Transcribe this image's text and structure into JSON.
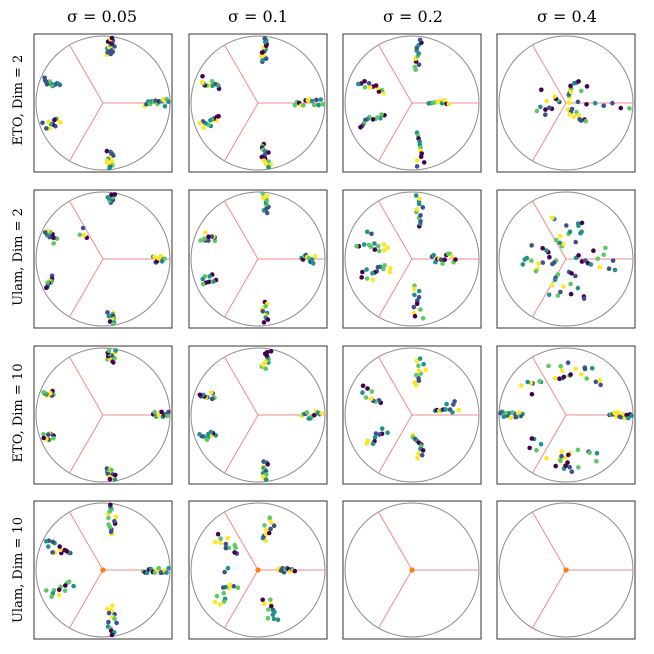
{
  "figure": {
    "column_titles": [
      "σ = 0.05",
      "σ = 0.1",
      "σ = 0.2",
      "σ = 0.4"
    ],
    "row_labels": [
      "ETO, Dim = 2",
      "Ulam, Dim = 2",
      "ETO, Dim = 10",
      "Ulam, Dim = 10"
    ]
  },
  "colors": {
    "frame": "#333333",
    "unit_circle": "#8c8c8c",
    "spokes": "#f28b8b",
    "center_marker": "#ff7f0e",
    "colormap": [
      "#440154",
      "#3b528b",
      "#21918c",
      "#5ec962",
      "#fde725"
    ]
  },
  "chart_data": {
    "type": "scatter",
    "description_free": true,
    "xlim": [
      -1.05,
      1.05
    ],
    "ylim": [
      -1.05,
      1.05
    ],
    "axes_visible": false,
    "grid": false,
    "spoke_angles_deg": [
      0,
      120,
      240
    ],
    "panels": [
      {
        "row": 0,
        "col": 0,
        "clusters": [
          {
            "angle": 0,
            "r0": 0.62,
            "r1": 0.98,
            "spread": 4,
            "n": 14
          },
          {
            "angle": 82,
            "r0": 0.72,
            "r1": 0.98,
            "spread": 4,
            "n": 14
          },
          {
            "angle": 158,
            "r0": 0.7,
            "r1": 0.95,
            "spread": 4,
            "n": 12
          },
          {
            "angle": 202,
            "r0": 0.7,
            "r1": 0.95,
            "spread": 4,
            "n": 12
          },
          {
            "angle": 278,
            "r0": 0.72,
            "r1": 0.98,
            "spread": 4,
            "n": 14
          }
        ],
        "center": false
      },
      {
        "row": 0,
        "col": 1,
        "clusters": [
          {
            "angle": 0,
            "r0": 0.55,
            "r1": 0.97,
            "spread": 4,
            "n": 14
          },
          {
            "angle": 82,
            "r0": 0.62,
            "r1": 0.97,
            "spread": 4,
            "n": 14
          },
          {
            "angle": 158,
            "r0": 0.62,
            "r1": 0.92,
            "spread": 4,
            "n": 12
          },
          {
            "angle": 202,
            "r0": 0.62,
            "r1": 0.92,
            "spread": 4,
            "n": 12
          },
          {
            "angle": 278,
            "r0": 0.62,
            "r1": 0.97,
            "spread": 4,
            "n": 14
          }
        ],
        "center": false
      },
      {
        "row": 0,
        "col": 2,
        "clusters": [
          {
            "angle": 0,
            "r0": 0.25,
            "r1": 0.55,
            "spread": 5,
            "n": 10
          },
          {
            "angle": 82,
            "r0": 0.5,
            "r1": 0.95,
            "spread": 4,
            "n": 12
          },
          {
            "angle": 158,
            "r0": 0.45,
            "r1": 0.85,
            "spread": 4,
            "n": 12
          },
          {
            "angle": 202,
            "r0": 0.45,
            "r1": 0.85,
            "spread": 4,
            "n": 12
          },
          {
            "angle": 278,
            "r0": 0.45,
            "r1": 0.95,
            "spread": 4,
            "n": 12
          }
        ],
        "center": false
      },
      {
        "row": 0,
        "col": 3,
        "clusters": [
          {
            "angle": 0,
            "r0": 0.05,
            "r1": 0.95,
            "spread": 6,
            "n": 8
          },
          {
            "angle": 60,
            "r0": 0.1,
            "r1": 0.4,
            "spread": 25,
            "n": 12
          },
          {
            "angle": 180,
            "r0": 0.1,
            "r1": 0.45,
            "spread": 30,
            "n": 12
          },
          {
            "angle": 300,
            "r0": 0.1,
            "r1": 0.4,
            "spread": 25,
            "n": 12
          }
        ],
        "center": false
      },
      {
        "row": 1,
        "col": 0,
        "clusters": [
          {
            "angle": 0,
            "r0": 0.75,
            "r1": 0.92,
            "spread": 4,
            "n": 10
          },
          {
            "angle": 82,
            "r0": 0.85,
            "r1": 0.98,
            "spread": 4,
            "n": 10
          },
          {
            "angle": 158,
            "r0": 0.75,
            "r1": 0.95,
            "spread": 6,
            "n": 10
          },
          {
            "angle": 202,
            "r0": 0.8,
            "r1": 0.95,
            "spread": 5,
            "n": 10
          },
          {
            "angle": 278,
            "r0": 0.8,
            "r1": 0.98,
            "spread": 4,
            "n": 10
          },
          {
            "angle": 120,
            "r0": 0.4,
            "r1": 0.55,
            "spread": 20,
            "n": 4
          }
        ],
        "center": false
      },
      {
        "row": 1,
        "col": 1,
        "clusters": [
          {
            "angle": 0,
            "r0": 0.65,
            "r1": 0.85,
            "spread": 5,
            "n": 10
          },
          {
            "angle": 82,
            "r0": 0.7,
            "r1": 0.98,
            "spread": 4,
            "n": 10
          },
          {
            "angle": 158,
            "r0": 0.7,
            "r1": 0.9,
            "spread": 5,
            "n": 10
          },
          {
            "angle": 202,
            "r0": 0.7,
            "r1": 0.9,
            "spread": 5,
            "n": 10
          },
          {
            "angle": 278,
            "r0": 0.65,
            "r1": 0.95,
            "spread": 4,
            "n": 10
          }
        ],
        "center": false
      },
      {
        "row": 1,
        "col": 2,
        "clusters": [
          {
            "angle": 0,
            "r0": 0.3,
            "r1": 0.65,
            "spread": 10,
            "n": 14
          },
          {
            "angle": 82,
            "r0": 0.5,
            "r1": 0.95,
            "spread": 6,
            "n": 12
          },
          {
            "angle": 158,
            "r0": 0.4,
            "r1": 0.85,
            "spread": 10,
            "n": 14
          },
          {
            "angle": 202,
            "r0": 0.35,
            "r1": 0.8,
            "spread": 10,
            "n": 14
          },
          {
            "angle": 278,
            "r0": 0.4,
            "r1": 0.9,
            "spread": 6,
            "n": 12
          }
        ],
        "center": false
      },
      {
        "row": 1,
        "col": 3,
        "clusters": [
          {
            "angle": 0,
            "r0": 0.15,
            "r1": 0.75,
            "spread": 18,
            "n": 14
          },
          {
            "angle": 90,
            "r0": 0.2,
            "r1": 0.65,
            "spread": 30,
            "n": 16
          },
          {
            "angle": 180,
            "r0": 0.15,
            "r1": 0.65,
            "spread": 25,
            "n": 16
          },
          {
            "angle": 270,
            "r0": 0.2,
            "r1": 0.65,
            "spread": 30,
            "n": 16
          }
        ],
        "center": false
      },
      {
        "row": 2,
        "col": 0,
        "clusters": [
          {
            "angle": 0,
            "r0": 0.75,
            "r1": 0.98,
            "spread": 4,
            "n": 12
          },
          {
            "angle": 82,
            "r0": 0.8,
            "r1": 0.98,
            "spread": 4,
            "n": 12
          },
          {
            "angle": 158,
            "r0": 0.8,
            "r1": 0.95,
            "spread": 4,
            "n": 10
          },
          {
            "angle": 202,
            "r0": 0.8,
            "r1": 0.95,
            "spread": 4,
            "n": 10
          },
          {
            "angle": 278,
            "r0": 0.8,
            "r1": 0.98,
            "spread": 4,
            "n": 12
          }
        ],
        "center": false
      },
      {
        "row": 2,
        "col": 1,
        "clusters": [
          {
            "angle": 0,
            "r0": 0.65,
            "r1": 0.95,
            "spread": 4,
            "n": 12
          },
          {
            "angle": 82,
            "r0": 0.7,
            "r1": 0.97,
            "spread": 4,
            "n": 12
          },
          {
            "angle": 158,
            "r0": 0.7,
            "r1": 0.92,
            "spread": 4,
            "n": 10
          },
          {
            "angle": 202,
            "r0": 0.7,
            "r1": 0.92,
            "spread": 4,
            "n": 10
          },
          {
            "angle": 278,
            "r0": 0.7,
            "r1": 0.97,
            "spread": 4,
            "n": 12
          }
        ],
        "center": false
      },
      {
        "row": 2,
        "col": 2,
        "clusters": [
          {
            "angle": 10,
            "r0": 0.35,
            "r1": 0.7,
            "spread": 8,
            "n": 12
          },
          {
            "angle": 80,
            "r0": 0.45,
            "r1": 0.85,
            "spread": 8,
            "n": 12
          },
          {
            "angle": 155,
            "r0": 0.5,
            "r1": 0.85,
            "spread": 6,
            "n": 10
          },
          {
            "angle": 210,
            "r0": 0.45,
            "r1": 0.8,
            "spread": 8,
            "n": 10
          },
          {
            "angle": 280,
            "r0": 0.3,
            "r1": 0.65,
            "spread": 10,
            "n": 12
          }
        ],
        "center": false
      },
      {
        "row": 2,
        "col": 3,
        "clusters": [
          {
            "angle": 0,
            "r0": 0.65,
            "r1": 0.98,
            "spread": 3,
            "n": 14
          },
          {
            "angle": 180,
            "r0": 0.65,
            "r1": 0.98,
            "spread": 3,
            "n": 14
          },
          {
            "angle": 70,
            "r0": 0.55,
            "r1": 0.8,
            "spread": 30,
            "n": 14
          },
          {
            "angle": 120,
            "r0": 0.55,
            "r1": 0.8,
            "spread": 30,
            "n": 12
          },
          {
            "angle": 240,
            "r0": 0.55,
            "r1": 0.8,
            "spread": 30,
            "n": 12
          },
          {
            "angle": 290,
            "r0": 0.55,
            "r1": 0.85,
            "spread": 30,
            "n": 14
          }
        ],
        "center": false
      },
      {
        "row": 3,
        "col": 0,
        "clusters": [
          {
            "angle": 0,
            "r0": 0.6,
            "r1": 0.98,
            "spread": 4,
            "n": 14
          },
          {
            "angle": 80,
            "r0": 0.55,
            "r1": 0.98,
            "spread": 5,
            "n": 14
          },
          {
            "angle": 155,
            "r0": 0.55,
            "r1": 0.95,
            "spread": 6,
            "n": 14
          },
          {
            "angle": 205,
            "r0": 0.5,
            "r1": 0.9,
            "spread": 6,
            "n": 12
          },
          {
            "angle": 280,
            "r0": 0.55,
            "r1": 0.98,
            "spread": 5,
            "n": 14
          }
        ],
        "center": true
      },
      {
        "row": 3,
        "col": 1,
        "clusters": [
          {
            "angle": 0,
            "r0": 0.3,
            "r1": 0.55,
            "spread": 6,
            "n": 12
          },
          {
            "angle": 75,
            "r0": 0.45,
            "r1": 0.8,
            "spread": 8,
            "n": 12
          },
          {
            "angle": 140,
            "r0": 0.4,
            "r1": 0.8,
            "spread": 10,
            "n": 12
          },
          {
            "angle": 215,
            "r0": 0.4,
            "r1": 0.8,
            "spread": 10,
            "n": 12
          },
          {
            "angle": 285,
            "r0": 0.45,
            "r1": 0.8,
            "spread": 8,
            "n": 12
          },
          {
            "angle": 180,
            "r0": 0.45,
            "r1": 0.5,
            "spread": 4,
            "n": 2
          }
        ],
        "center": true
      },
      {
        "row": 3,
        "col": 2,
        "clusters": [],
        "center": true
      },
      {
        "row": 3,
        "col": 3,
        "clusters": [],
        "center": true
      }
    ]
  }
}
